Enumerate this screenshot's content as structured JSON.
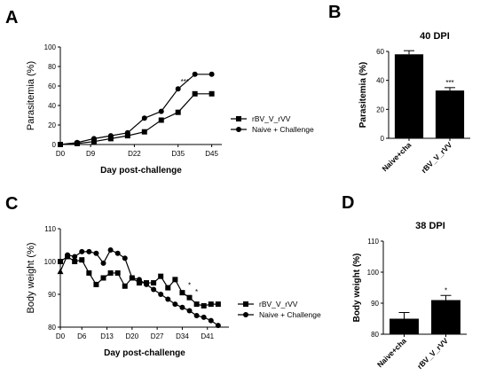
{
  "panels": {
    "A": "A",
    "B": "B",
    "C": "C",
    "D": "D"
  },
  "chart_data": [
    {
      "id": "A",
      "type": "line",
      "title": "",
      "xlabel": "Day post-challenge",
      "ylabel": "Parasitemia (%)",
      "ylim": [
        0,
        100
      ],
      "yticks": [
        "0",
        "20",
        "40",
        "60",
        "80",
        "100"
      ],
      "xticks": [
        "D0",
        "D9",
        "D22",
        "D35",
        "D45"
      ],
      "xlim": [
        0,
        48
      ],
      "xtick_values": [
        0,
        9,
        22,
        35,
        45
      ],
      "series": [
        {
          "name": "rBV_V_rVV",
          "marker": "square",
          "x": [
            0,
            5,
            10,
            15,
            20,
            25,
            30,
            35,
            40,
            45
          ],
          "y": [
            0,
            1,
            3,
            6,
            9,
            13,
            25,
            33,
            52,
            52
          ]
        },
        {
          "name": "Naive + Challenge",
          "marker": "circle",
          "x": [
            0,
            5,
            10,
            15,
            20,
            25,
            30,
            35,
            40,
            45
          ],
          "y": [
            0,
            2,
            6,
            9,
            12,
            27,
            34,
            57,
            72,
            72
          ]
        }
      ],
      "annotations": [
        {
          "text": "***",
          "x": 37,
          "y": 62
        }
      ]
    },
    {
      "id": "B",
      "type": "bar",
      "title": "40 DPI",
      "ylabel": "Parasitemia (%)",
      "ylim": [
        0,
        60
      ],
      "yticks": [
        "0",
        "20",
        "40",
        "60"
      ],
      "categories": [
        "Naive+cha",
        "rBV_V_rVV"
      ],
      "values": [
        58,
        33
      ],
      "errors": [
        2.5,
        2
      ],
      "annotations": [
        "",
        "***"
      ]
    },
    {
      "id": "C",
      "type": "line",
      "title": "",
      "xlabel": "Day post-challenge",
      "ylabel": "Body weight (%)",
      "ylim": [
        80,
        110
      ],
      "yticks": [
        "80",
        "90",
        "100",
        "110"
      ],
      "xticks": [
        "D0",
        "D6",
        "D13",
        "D20",
        "D27",
        "D34",
        "D41"
      ],
      "xlim": [
        0,
        47
      ],
      "xtick_values": [
        0,
        6,
        13,
        20,
        27,
        34,
        41
      ],
      "series": [
        {
          "name": "rBV_V_rVV",
          "marker": "square",
          "x": [
            0,
            2,
            4,
            6,
            8,
            10,
            12,
            14,
            16,
            18,
            20,
            22,
            24,
            26,
            28,
            30,
            32,
            34,
            36,
            38,
            40,
            42,
            44
          ],
          "y": [
            100,
            101.5,
            100,
            100.5,
            96.5,
            93,
            95,
            96.5,
            96.5,
            92.5,
            95,
            93.5,
            93.5,
            93.5,
            95.5,
            92,
            94.5,
            90.5,
            89,
            87,
            86.5,
            87,
            87
          ]
        },
        {
          "name": "Naive + Challenge",
          "marker": "circle",
          "x": [
            0,
            2,
            4,
            6,
            8,
            10,
            12,
            14,
            16,
            18,
            20,
            22,
            24,
            26,
            28,
            30,
            32,
            34,
            36,
            38,
            40,
            42,
            44
          ],
          "y": [
            97,
            102,
            101.5,
            103,
            103,
            102.5,
            99.5,
            103.5,
            102.5,
            101,
            95,
            94.5,
            93,
            91.5,
            90,
            88.5,
            87,
            86,
            85,
            83.5,
            83,
            82,
            80.5
          ]
        }
      ],
      "annotations": [
        {
          "text": "*",
          "x": 36,
          "y": 92
        },
        {
          "text": "*",
          "x": 38,
          "y": 90
        }
      ]
    },
    {
      "id": "D",
      "type": "bar",
      "title": "38 DPI",
      "ylabel": "Body weight (%)",
      "ylim": [
        80,
        110
      ],
      "yticks": [
        "80",
        "90",
        "100",
        "110"
      ],
      "categories": [
        "Naive+cha",
        "rBV_V_rVV"
      ],
      "values": [
        85,
        91
      ],
      "errors": [
        2,
        1.5
      ],
      "annotations": [
        "",
        "*"
      ]
    }
  ]
}
